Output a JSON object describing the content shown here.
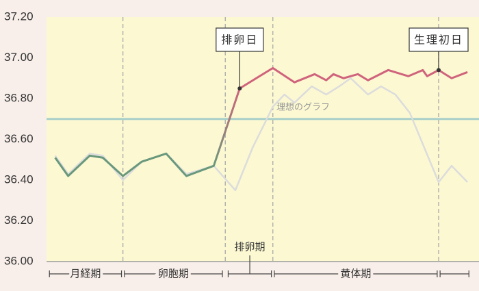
{
  "chart_data": {
    "type": "line",
    "xlim": [
      0,
      30
    ],
    "ylim": [
      36.0,
      37.2
    ],
    "yticks": [
      {
        "value": 36.0,
        "label": "36.00"
      },
      {
        "value": 36.2,
        "label": "36.20"
      },
      {
        "value": 36.4,
        "label": "36.40"
      },
      {
        "value": 36.6,
        "label": "36.60"
      },
      {
        "value": 36.8,
        "label": "36.80"
      },
      {
        "value": 37.0,
        "label": "37.00"
      },
      {
        "value": 37.2,
        "label": "37.20"
      }
    ],
    "series": [
      {
        "color": "#dcdcdc",
        "x": [
          0.6,
          1.5,
          3.0,
          3.9,
          5.3,
          6.6,
          8.3,
          9.7,
          11.6,
          13.1,
          14.3,
          15.7,
          16.5,
          17.2,
          18.4,
          19.4,
          20.3,
          21.1,
          22.3,
          23.2,
          24.2,
          25.2,
          27.2,
          28.1,
          29.2
        ],
        "values": [
          36.52,
          36.43,
          36.53,
          36.52,
          36.4,
          36.49,
          36.53,
          36.43,
          36.47,
          36.35,
          36.56,
          36.76,
          36.82,
          36.78,
          36.86,
          36.82,
          36.86,
          36.9,
          36.82,
          36.86,
          36.82,
          36.73,
          36.39,
          36.47,
          36.39
        ]
      },
      {
        "color": "#d0637c",
        "early_color": "#6a987c",
        "x": [
          0.6,
          1.5,
          3.0,
          3.9,
          5.3,
          6.6,
          8.3,
          9.7,
          11.6,
          13.4,
          15.7,
          17.2,
          18.6,
          19.4,
          19.9,
          20.6,
          21.6,
          22.3,
          23.7,
          25.1,
          26.1,
          26.4,
          27.2,
          28.1,
          29.2
        ],
        "values": [
          36.51,
          36.42,
          36.52,
          36.51,
          36.42,
          36.49,
          36.53,
          36.42,
          36.47,
          36.85,
          36.95,
          36.88,
          36.92,
          36.89,
          36.92,
          36.9,
          36.92,
          36.89,
          36.94,
          36.91,
          36.94,
          36.91,
          36.94,
          36.9,
          36.93
        ]
      }
    ],
    "reference_line": {
      "value": 36.7,
      "label": "理想のグラフ",
      "color": "#a9d0c9"
    },
    "vlines": [
      5.3,
      12.4,
      15.7,
      27.2
    ],
    "annotations": [
      {
        "text": "排卵日",
        "x": 13.4,
        "y": 36.85
      },
      {
        "text": "生理初日",
        "x": 27.2,
        "y": 36.94
      }
    ],
    "phases": [
      {
        "label": "月経期",
        "range": [
          0.2,
          5.2
        ]
      },
      {
        "label": "卵胞期",
        "range": [
          5.4,
          12.2
        ]
      },
      {
        "label": null,
        "range": [
          12.6,
          15.6
        ]
      },
      {
        "label": "黄体期",
        "range": [
          15.8,
          27.1
        ]
      },
      {
        "label": null,
        "range": [
          27.3,
          29.3
        ]
      }
    ],
    "ovulation_phase_label": "排卵期"
  }
}
